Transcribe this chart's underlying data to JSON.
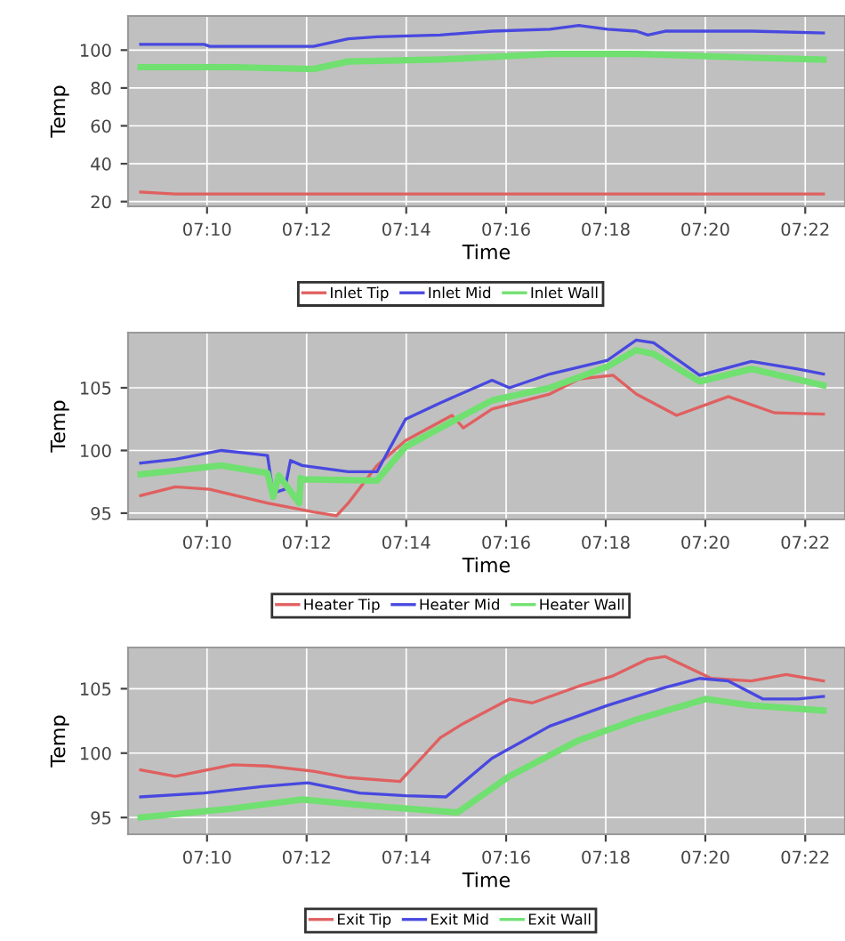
{
  "chart_data": [
    {
      "type": "line",
      "xlabel": "Time",
      "ylabel": "Temp",
      "xlim": [
        7.1403,
        7.38
      ],
      "ylim": [
        17.5,
        118
      ],
      "yticks": [
        20,
        40,
        60,
        80,
        100
      ],
      "xticks": [
        {
          "value": 7.1667,
          "label": "07:10"
        },
        {
          "value": 7.2,
          "label": "07:12"
        },
        {
          "value": 7.2333,
          "label": "07:14"
        },
        {
          "value": 7.2667,
          "label": "07:16"
        },
        {
          "value": 7.3,
          "label": "07:18"
        },
        {
          "value": 7.3333,
          "label": "07:20"
        },
        {
          "value": 7.3667,
          "label": "07:22"
        }
      ],
      "grid": true,
      "legend": "bottom",
      "line_style": "solid",
      "marker": "none",
      "series": [
        {
          "name": "Inlet Tip",
          "color": "#e06060",
          "x": [
            7.1445,
            7.1561,
            7.3728
          ],
          "values": [
            25,
            24,
            24
          ]
        },
        {
          "name": "Inlet Mid",
          "color": "#4848e0",
          "x": [
            7.1445,
            7.1657,
            7.1676,
            7.1946,
            7.2023,
            7.2139,
            7.2235,
            7.2447,
            7.262,
            7.2813,
            7.291,
            7.3006,
            7.3102,
            7.3141,
            7.3199,
            7.3391,
            7.3487,
            7.3728
          ],
          "values": [
            103,
            103,
            102,
            102,
            102,
            106,
            107,
            108,
            110,
            111,
            113,
            111,
            110,
            108,
            110,
            110,
            110,
            109
          ]
        },
        {
          "name": "Inlet Wall",
          "color": "#70e070",
          "x": [
            7.1445,
            7.1753,
            7.2023,
            7.2139,
            7.2447,
            7.2813,
            7.3102,
            7.3487,
            7.3728
          ],
          "values": [
            91,
            91,
            90,
            94,
            95,
            98,
            98,
            96,
            95
          ]
        }
      ]
    },
    {
      "type": "line",
      "xlabel": "Time",
      "ylabel": "Temp",
      "xlim": [
        7.1403,
        7.38
      ],
      "ylim": [
        94.5,
        109.4
      ],
      "yticks": [
        95,
        100,
        105
      ],
      "xticks": [
        {
          "value": 7.1667,
          "label": "07:10"
        },
        {
          "value": 7.2,
          "label": "07:12"
        },
        {
          "value": 7.2333,
          "label": "07:14"
        },
        {
          "value": 7.2667,
          "label": "07:16"
        },
        {
          "value": 7.3,
          "label": "07:18"
        },
        {
          "value": 7.3333,
          "label": "07:20"
        },
        {
          "value": 7.3667,
          "label": "07:22"
        }
      ],
      "grid": true,
      "legend": "bottom",
      "line_style": "solid",
      "marker": "none",
      "series": [
        {
          "name": "Heater Tip",
          "color": "#e06060",
          "x": [
            7.1445,
            7.1561,
            7.1676,
            7.1869,
            7.2023,
            7.21,
            7.2139,
            7.2235,
            7.2331,
            7.2486,
            7.2524,
            7.262,
            7.2813,
            7.291,
            7.3025,
            7.3102,
            7.3237,
            7.341,
            7.3565,
            7.3728
          ],
          "values": [
            96.4,
            97.1,
            96.9,
            95.8,
            95.1,
            94.8,
            95.8,
            98.8,
            100.8,
            102.8,
            101.8,
            103.3,
            104.5,
            105.7,
            106,
            104.5,
            102.8,
            104.3,
            103,
            102.9
          ]
        },
        {
          "name": "Heater Mid",
          "color": "#4848e0",
          "x": [
            7.1445,
            7.1561,
            7.1715,
            7.183,
            7.1869,
            7.1888,
            7.1927,
            7.1946,
            7.1985,
            7.2139,
            7.2235,
            7.2331,
            7.2447,
            7.262,
            7.2678,
            7.2813,
            7.3006,
            7.3102,
            7.316,
            7.3314,
            7.3487,
            7.3642,
            7.3728
          ],
          "values": [
            99,
            99.3,
            100,
            99.7,
            99.6,
            96.6,
            96.9,
            99.2,
            98.8,
            98.3,
            98.3,
            102.5,
            103.8,
            105.6,
            105,
            106.1,
            107.2,
            108.8,
            108.6,
            106,
            107.1,
            106.5,
            106.1
          ]
        },
        {
          "name": "Heater Wall",
          "color": "#70e070",
          "x": [
            7.1445,
            7.1715,
            7.1869,
            7.1888,
            7.1907,
            7.1975,
            7.198,
            7.1985,
            7.2235,
            7.2331,
            7.2447,
            7.262,
            7.2813,
            7.3006,
            7.3102,
            7.316,
            7.3314,
            7.3487,
            7.3728
          ],
          "values": [
            98.1,
            98.8,
            98.2,
            96.3,
            98,
            95.8,
            97.8,
            97.7,
            97.6,
            100.3,
            101.8,
            104,
            105,
            106.7,
            108,
            107.7,
            105.5,
            106.5,
            105.2
          ]
        }
      ]
    },
    {
      "type": "line",
      "xlabel": "Time",
      "ylabel": "Temp",
      "xlim": [
        7.1403,
        7.38
      ],
      "ylim": [
        93.7,
        108.2
      ],
      "yticks": [
        95,
        100,
        105
      ],
      "xticks": [
        {
          "value": 7.1667,
          "label": "07:10"
        },
        {
          "value": 7.2,
          "label": "07:12"
        },
        {
          "value": 7.2333,
          "label": "07:14"
        },
        {
          "value": 7.2667,
          "label": "07:16"
        },
        {
          "value": 7.3,
          "label": "07:18"
        },
        {
          "value": 7.3333,
          "label": "07:20"
        },
        {
          "value": 7.3667,
          "label": "07:22"
        }
      ],
      "grid": true,
      "legend": "bottom",
      "line_style": "solid",
      "marker": "none",
      "series": [
        {
          "name": "Exit Tip",
          "color": "#e06060",
          "x": [
            7.1445,
            7.1561,
            7.1753,
            7.1869,
            7.2023,
            7.2139,
            7.2312,
            7.2447,
            7.2524,
            7.2678,
            7.2755,
            7.291,
            7.3025,
            7.3141,
            7.3199,
            7.3353,
            7.3487,
            7.3603,
            7.3728
          ],
          "values": [
            98.7,
            98.2,
            99.1,
            99,
            98.6,
            98.1,
            97.8,
            101.2,
            102.3,
            104.2,
            103.9,
            105.2,
            106,
            107.3,
            107.5,
            105.8,
            105.6,
            106.1,
            105.6
          ]
        },
        {
          "name": "Exit Mid",
          "color": "#4848e0",
          "x": [
            7.1445,
            7.1657,
            7.185,
            7.2004,
            7.2177,
            7.2331,
            7.2466,
            7.262,
            7.2813,
            7.3006,
            7.3199,
            7.3314,
            7.341,
            7.3526,
            7.3642,
            7.3728
          ],
          "values": [
            96.6,
            96.9,
            97.4,
            97.7,
            96.9,
            96.7,
            96.6,
            99.6,
            102.1,
            103.7,
            105.1,
            105.8,
            105.6,
            104.2,
            104.2,
            104.4
          ]
        },
        {
          "name": "Exit Wall",
          "color": "#70e070",
          "x": [
            7.1445,
            7.1753,
            7.1985,
            7.2216,
            7.2505,
            7.2678,
            7.291,
            7.3102,
            7.3333,
            7.3487,
            7.3728
          ],
          "values": [
            95,
            95.7,
            96.4,
            95.9,
            95.4,
            98.2,
            101,
            102.6,
            104.2,
            103.7,
            103.3
          ]
        }
      ]
    }
  ]
}
